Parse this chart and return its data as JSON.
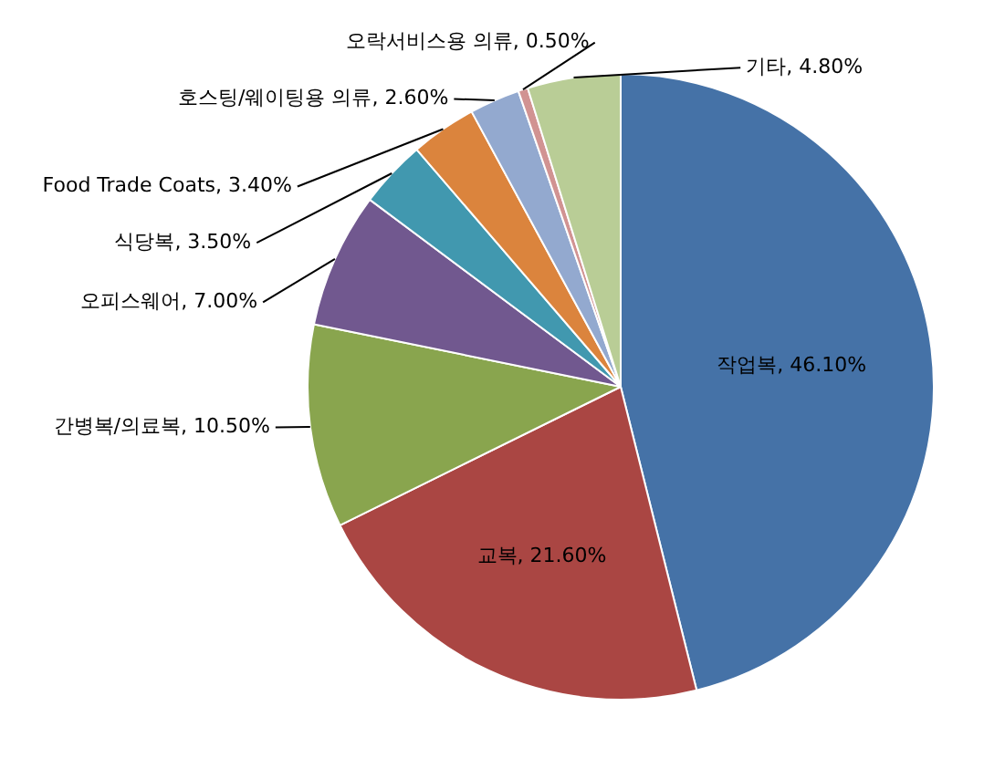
{
  "chart_data": {
    "type": "pie",
    "categories": [
      "작업복",
      "교복",
      "간병복/의료복",
      "오피스웨어",
      "식당복",
      "Food Trade Coats",
      "호스팅/웨이팅용 의류",
      "오락서비스용 의류",
      "기타"
    ],
    "values": [
      46.1,
      21.6,
      10.5,
      7.0,
      3.5,
      3.4,
      2.6,
      0.5,
      4.8
    ],
    "value_labels": [
      "46.10%",
      "21.60%",
      "10.50%",
      "7.00%",
      "3.50%",
      "3.40%",
      "2.60%",
      "0.50%",
      "4.80%"
    ],
    "colors": [
      "#4572a7",
      "#aa4643",
      "#89a54e",
      "#71588f",
      "#4198af",
      "#db843d",
      "#93a9cf",
      "#d19392",
      "#b9cd96"
    ],
    "legend": false
  }
}
